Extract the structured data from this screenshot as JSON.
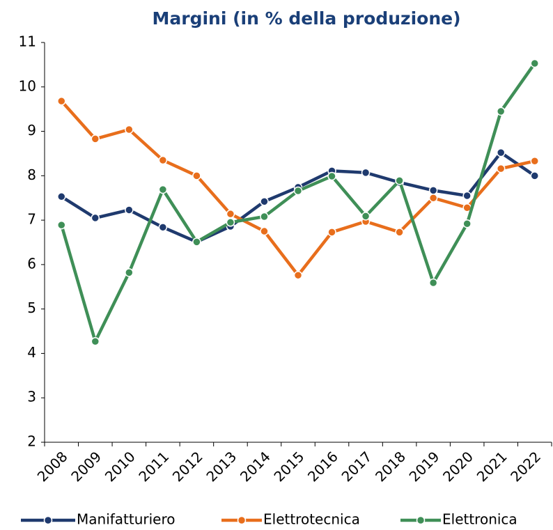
{
  "chart_data": {
    "type": "line",
    "title": "Margini (in % della produzione)",
    "categories": [
      "2008",
      "2009",
      "2010",
      "2011",
      "2012",
      "2013",
      "2014",
      "2015",
      "2016",
      "2017",
      "2018",
      "2019",
      "2020",
      "2021",
      "2022"
    ],
    "series": [
      {
        "name": "Manifatturiero",
        "color": "#1f3a6e",
        "values": [
          7.53,
          7.05,
          7.23,
          6.84,
          6.51,
          6.86,
          7.42,
          7.74,
          8.11,
          8.07,
          7.85,
          7.67,
          7.55,
          8.52,
          8.0
        ]
      },
      {
        "name": "Elettrotecnica",
        "color": "#e86e1c",
        "values": [
          9.68,
          8.83,
          9.04,
          8.35,
          8.0,
          7.14,
          6.75,
          5.76,
          6.73,
          6.97,
          6.73,
          7.5,
          7.28,
          8.16,
          8.33
        ]
      },
      {
        "name": "Elettronica",
        "color": "#3f8f57",
        "values": [
          6.89,
          4.27,
          5.82,
          7.69,
          6.51,
          6.95,
          7.08,
          7.66,
          7.99,
          7.09,
          7.89,
          5.59,
          6.92,
          9.45,
          10.53
        ]
      }
    ],
    "ylim": [
      2,
      11
    ],
    "yticks": [
      2,
      3,
      4,
      5,
      6,
      7,
      8,
      9,
      10,
      11
    ],
    "grid": false,
    "legend": "bottom"
  }
}
